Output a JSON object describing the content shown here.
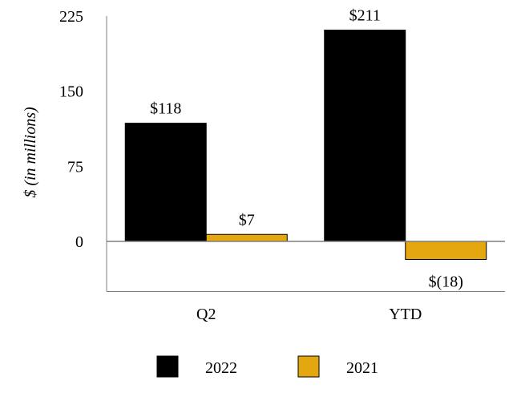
{
  "chart_data": {
    "type": "bar",
    "categories": [
      "Q2",
      "YTD"
    ],
    "series": [
      {
        "name": "2022",
        "values": [
          118,
          211
        ],
        "labels": [
          "$118",
          "$211"
        ],
        "color": "#000000"
      },
      {
        "name": "2021",
        "values": [
          7,
          -18
        ],
        "labels": [
          "$7",
          "$(18)"
        ],
        "color": "#E5A70F"
      }
    ],
    "ylabel": "$ (in millions)",
    "yticks": [
      0,
      75,
      150,
      225
    ],
    "ytick_labels": [
      "0",
      "75",
      "150",
      "225"
    ],
    "ylim": [
      -50,
      225
    ],
    "grid": false,
    "legend_position": "bottom"
  }
}
